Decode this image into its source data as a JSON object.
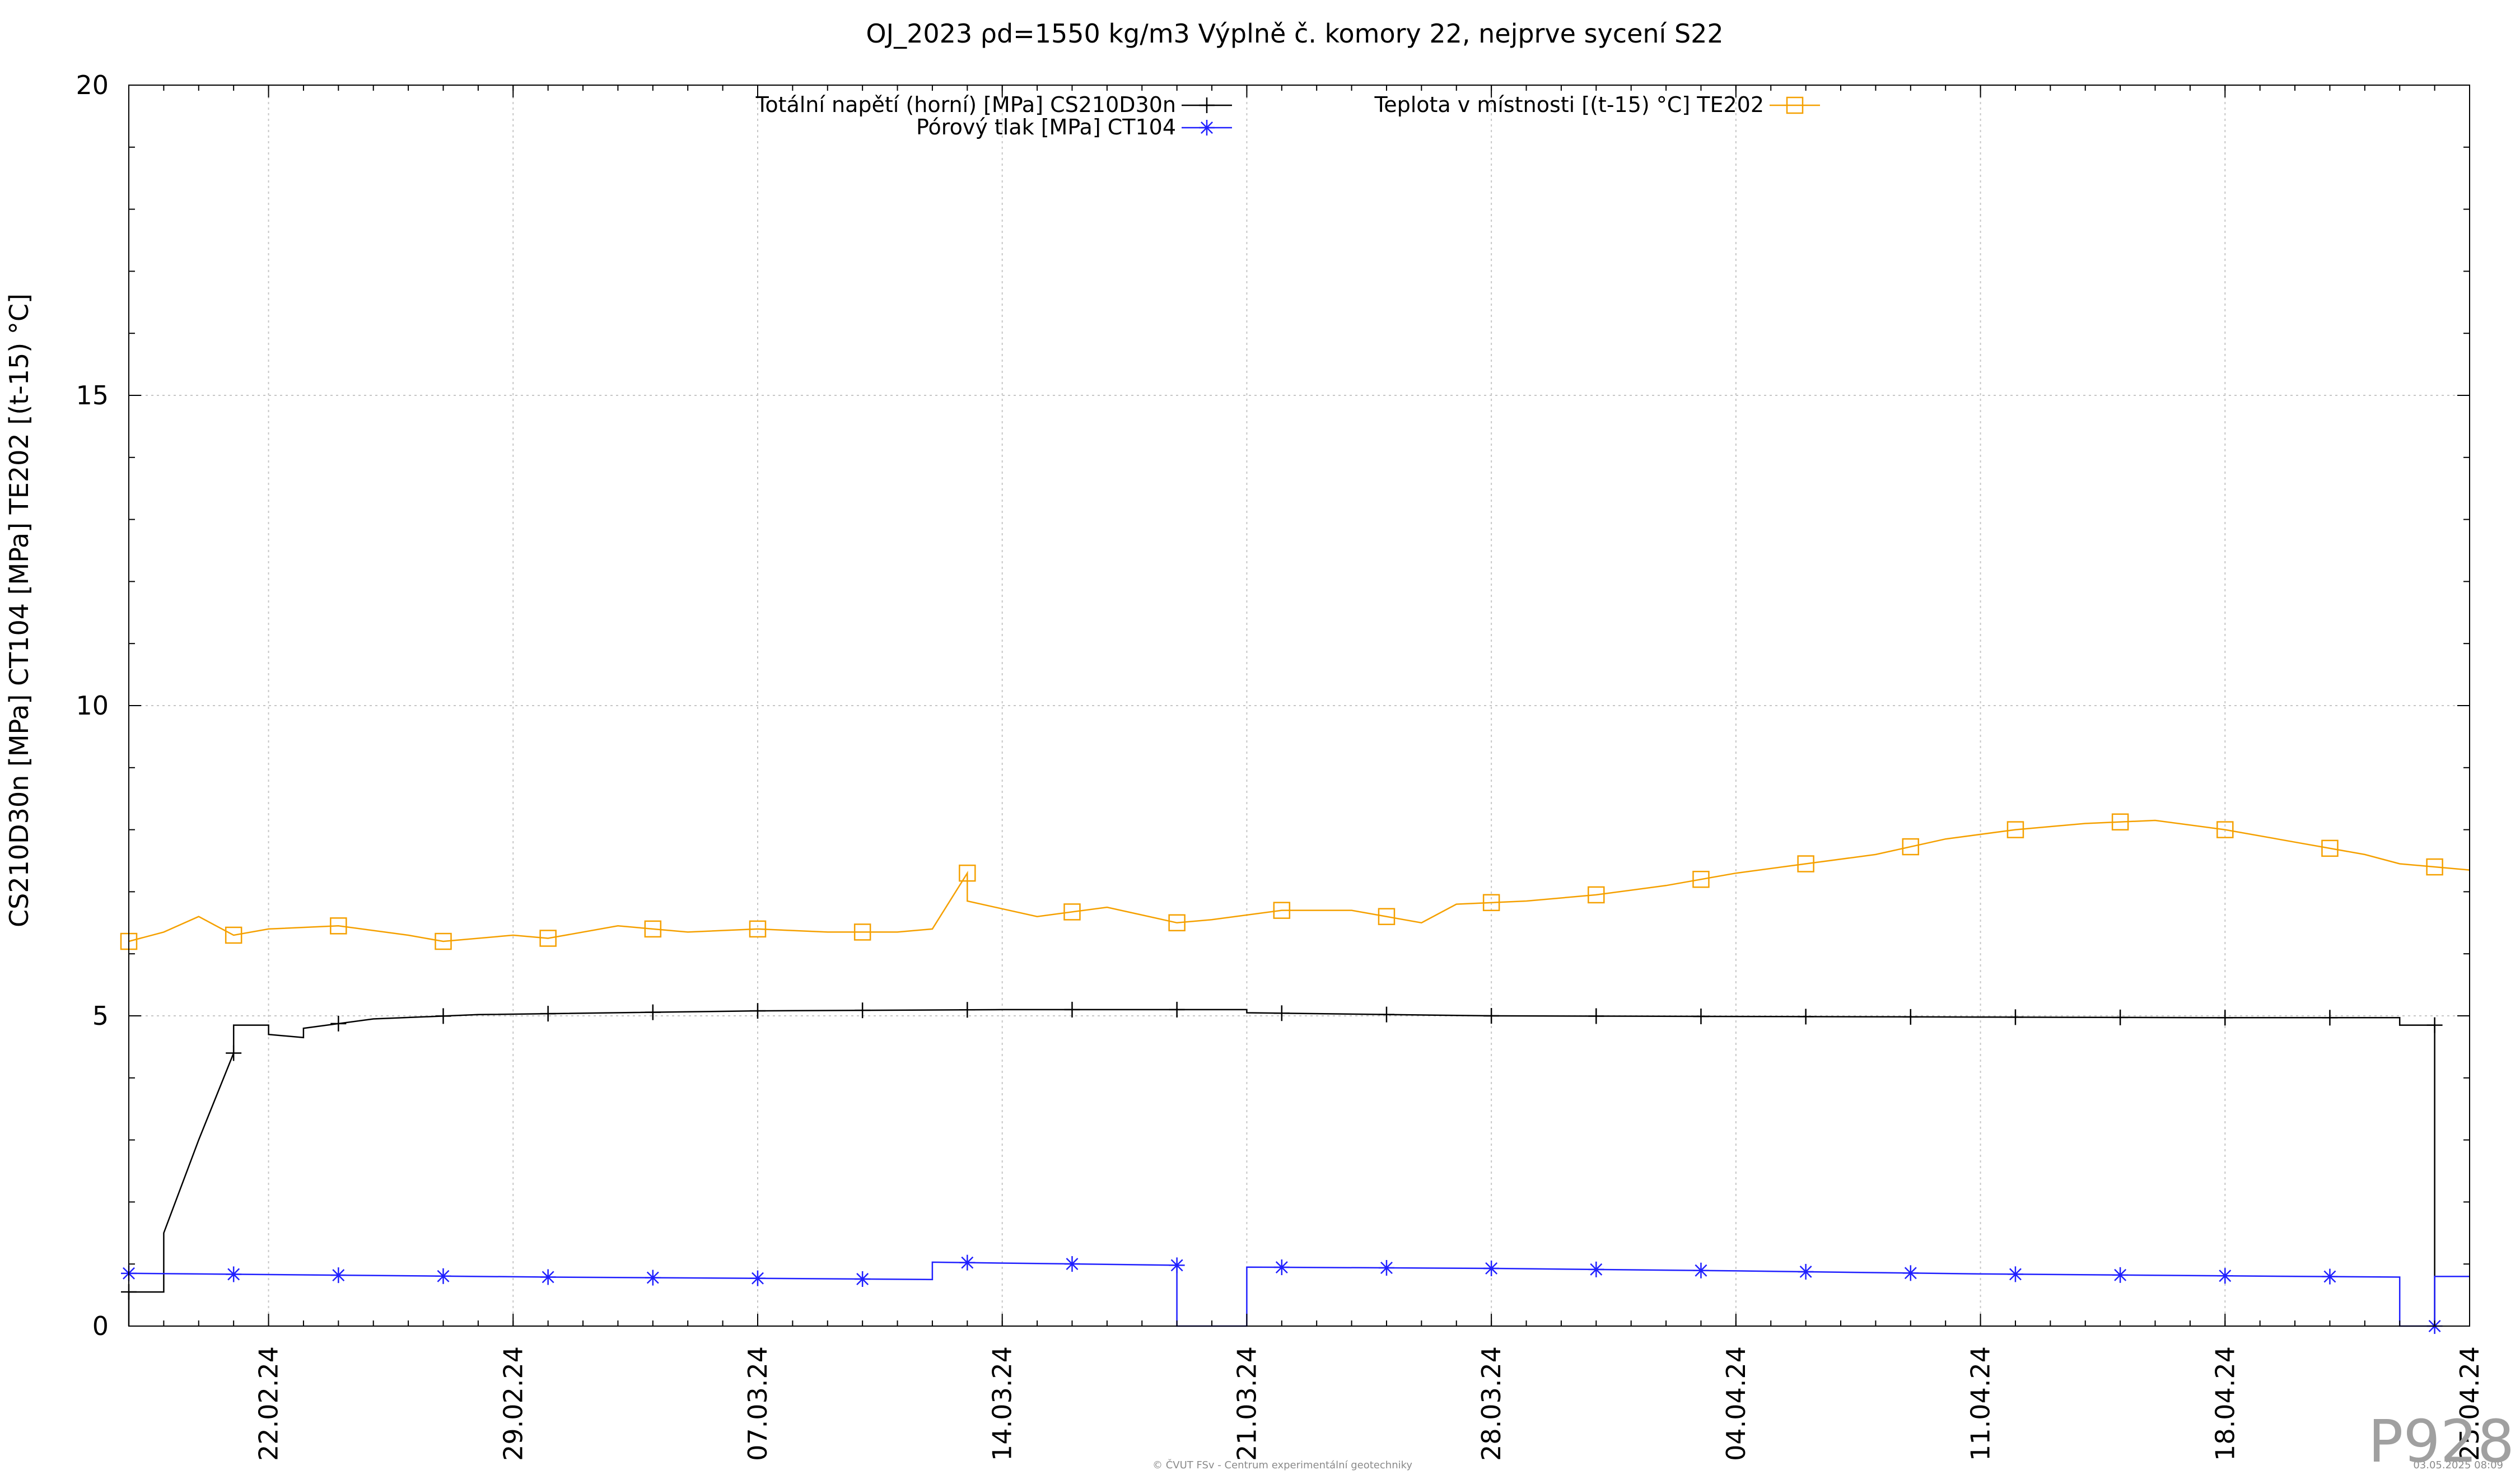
{
  "chart_data": {
    "type": "line",
    "title": "OJ_2023 ρd=1550 kg/m3 Výplně č. komory 22, nejprve sycení S22",
    "ylabel": "CS210D30n [MPa] CT104 [MPa] TE202 [(t-15) °C]",
    "xlabel": "",
    "x_range": [
      "2024-02-18",
      "2024-04-25"
    ],
    "ylim": [
      0,
      20
    ],
    "y_ticks": [
      "0",
      "5",
      "10",
      "15",
      "20"
    ],
    "x_tick_dates": [
      "2024-02-22",
      "2024-02-29",
      "2024-03-07",
      "2024-03-14",
      "2024-03-21",
      "2024-03-28",
      "2024-04-04",
      "2024-04-11",
      "2024-04-18",
      "2024-04-25"
    ],
    "x_tick_labels": [
      "22.02.24",
      "29.02.24",
      "07.03.24",
      "14.03.24",
      "21.03.24",
      "28.03.24",
      "04.04.24",
      "11.04.24",
      "18.04.24",
      "25.04.24"
    ],
    "grid": true,
    "legend_placement": "top",
    "series": [
      {
        "name": "Totální napětí (horní) [MPa] CS210D30n",
        "color": "#000000",
        "marker": "plus",
        "points": [
          [
            "2024-02-18",
            0.0
          ],
          [
            "2024-02-18",
            0.55
          ],
          [
            "2024-02-19",
            0.55
          ],
          [
            "2024-02-19",
            0.55
          ],
          [
            "2024-02-19",
            1.5
          ],
          [
            "2024-02-20",
            3.0
          ],
          [
            "2024-02-21",
            4.4
          ],
          [
            "2024-02-21",
            4.85
          ],
          [
            "2024-02-22",
            4.85
          ],
          [
            "2024-02-22",
            4.7
          ],
          [
            "2024-02-23",
            4.65
          ],
          [
            "2024-02-23",
            4.8
          ],
          [
            "2024-02-25",
            4.95
          ],
          [
            "2024-02-28",
            5.02
          ],
          [
            "2024-03-07",
            5.08
          ],
          [
            "2024-03-14",
            5.1
          ],
          [
            "2024-03-21",
            5.1
          ],
          [
            "2024-03-21",
            5.05
          ],
          [
            "2024-03-28",
            5.0
          ],
          [
            "2024-04-04",
            4.99
          ],
          [
            "2024-04-11",
            4.98
          ],
          [
            "2024-04-18",
            4.97
          ],
          [
            "2024-04-23",
            4.97
          ],
          [
            "2024-04-23",
            4.85
          ],
          [
            "2024-04-24",
            4.85
          ],
          [
            "2024-04-24",
            0.0
          ]
        ]
      },
      {
        "name": "Pórový tlak [MPa] CT104",
        "color": "#2020ff",
        "marker": "star",
        "points": [
          [
            "2024-02-18",
            0.85
          ],
          [
            "2024-02-24",
            0.82
          ],
          [
            "2024-03-01",
            0.79
          ],
          [
            "2024-03-07",
            0.77
          ],
          [
            "2024-03-12",
            0.75
          ],
          [
            "2024-03-12",
            1.03
          ],
          [
            "2024-03-19",
            0.98
          ],
          [
            "2024-03-19",
            0.0
          ],
          [
            "2024-03-21",
            0.0
          ],
          [
            "2024-03-21",
            0.95
          ],
          [
            "2024-03-28",
            0.93
          ],
          [
            "2024-04-04",
            0.89
          ],
          [
            "2024-04-11",
            0.84
          ],
          [
            "2024-04-18",
            0.81
          ],
          [
            "2024-04-23",
            0.79
          ],
          [
            "2024-04-23",
            0.0
          ],
          [
            "2024-04-24",
            0.0
          ],
          [
            "2024-04-24",
            0.8
          ],
          [
            "2024-04-25",
            0.8
          ]
        ]
      },
      {
        "name": "Teplota v místnosti [(t-15) °C] TE202",
        "color": "#f5a000",
        "marker": "square",
        "points": [
          [
            "2024-02-18",
            6.2
          ],
          [
            "2024-02-19",
            6.35
          ],
          [
            "2024-02-20",
            6.6
          ],
          [
            "2024-02-21",
            6.3
          ],
          [
            "2024-02-22",
            6.4
          ],
          [
            "2024-02-24",
            6.45
          ],
          [
            "2024-02-26",
            6.3
          ],
          [
            "2024-02-27",
            6.2
          ],
          [
            "2024-02-29",
            6.3
          ],
          [
            "2024-03-01",
            6.25
          ],
          [
            "2024-03-03",
            6.45
          ],
          [
            "2024-03-05",
            6.35
          ],
          [
            "2024-03-07",
            6.4
          ],
          [
            "2024-03-09",
            6.35
          ],
          [
            "2024-03-11",
            6.35
          ],
          [
            "2024-03-12",
            6.4
          ],
          [
            "2024-03-13",
            7.3
          ],
          [
            "2024-03-13",
            6.85
          ],
          [
            "2024-03-15",
            6.6
          ],
          [
            "2024-03-17",
            6.75
          ],
          [
            "2024-03-19",
            6.5
          ],
          [
            "2024-03-20",
            6.55
          ],
          [
            "2024-03-22",
            6.7
          ],
          [
            "2024-03-24",
            6.7
          ],
          [
            "2024-03-26",
            6.5
          ],
          [
            "2024-03-27",
            6.8
          ],
          [
            "2024-03-29",
            6.85
          ],
          [
            "2024-03-31",
            6.95
          ],
          [
            "2024-04-02",
            7.1
          ],
          [
            "2024-04-04",
            7.3
          ],
          [
            "2024-04-06",
            7.45
          ],
          [
            "2024-04-08",
            7.6
          ],
          [
            "2024-04-10",
            7.85
          ],
          [
            "2024-04-12",
            8.0
          ],
          [
            "2024-04-14",
            8.1
          ],
          [
            "2024-04-16",
            8.15
          ],
          [
            "2024-04-18",
            8.0
          ],
          [
            "2024-04-20",
            7.8
          ],
          [
            "2024-04-22",
            7.6
          ],
          [
            "2024-04-23",
            7.45
          ],
          [
            "2024-04-25",
            7.35
          ]
        ]
      }
    ]
  },
  "footer_text": "© ČVUT FSv - Centrum experimentální geotechniky",
  "timestamp": "03.05.2025 08:09",
  "watermark": "P928"
}
